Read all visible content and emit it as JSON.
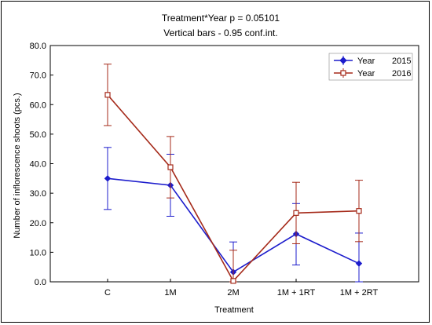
{
  "chart_data": {
    "type": "line",
    "title": "Treatment*Year p = 0.05101",
    "subtitle": "Vertical bars - 0.95 conf.int.",
    "xlabel": "Treatment",
    "ylabel": "Number of inflorescence shoots (pcs.)",
    "categories": [
      "C",
      "1M",
      "2M",
      "1M + 1RT",
      "1M + 2RT"
    ],
    "ylim": [
      0,
      80
    ],
    "yticks": [
      "0.0",
      "10.0",
      "20.0",
      "30.0",
      "40.0",
      "50.0",
      "60.0",
      "70.0",
      "80.0"
    ],
    "grid": false,
    "legend_position": "top-right",
    "series": [
      {
        "name": "Year",
        "year": "2015",
        "color": "#1c1ccc",
        "marker": "diamond",
        "values": [
          35.0,
          32.7,
          3.3,
          16.2,
          6.2
        ],
        "ci_low": [
          24.5,
          22.2,
          0.0,
          5.7,
          0.0
        ],
        "ci_high": [
          45.5,
          43.2,
          13.5,
          26.5,
          16.5
        ]
      },
      {
        "name": "Year",
        "year": "2016",
        "color": "#a52a1a",
        "marker": "square",
        "values": [
          63.3,
          38.8,
          0.3,
          23.3,
          24.0
        ],
        "ci_low": [
          52.9,
          28.4,
          0.0,
          12.9,
          13.6
        ],
        "ci_high": [
          73.7,
          49.2,
          10.7,
          33.7,
          34.4
        ]
      }
    ]
  }
}
